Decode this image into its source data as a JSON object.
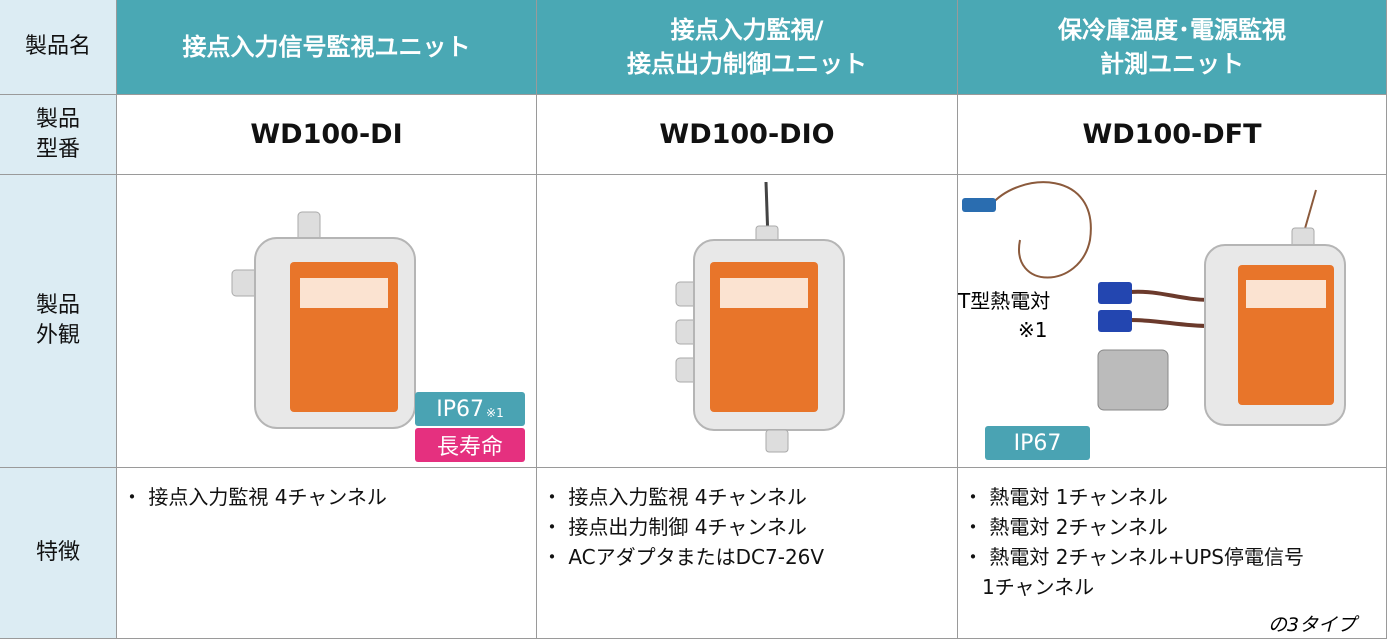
{
  "row_labels": {
    "name": [
      "製品名"
    ],
    "model": [
      "製品",
      "型番"
    ],
    "appearance": [
      "製品",
      "外観"
    ],
    "features": [
      "特徴"
    ]
  },
  "columns": [
    {
      "name": [
        "接点入力信号監視ユニット"
      ],
      "model": "WD100-DI",
      "badges": [
        {
          "text": "IP67",
          "note": "※1"
        },
        {
          "text": "長寿命"
        }
      ],
      "features": [
        "・ 接点入力監視 4チャンネル"
      ]
    },
    {
      "name": [
        "接点入力監視/",
        "接点出力制御ユニット"
      ],
      "model": "WD100-DIO",
      "features": [
        "・ 接点入力監視 4チャンネル",
        "・ 接点出力制御 4チャンネル",
        "・ ACアダプタまたはDC7-26V"
      ]
    },
    {
      "name": [
        "保冷庫温度･電源監視",
        "計測ユニット"
      ],
      "model": "WD100-DFT",
      "sensor_label": "T型熱電対",
      "sensor_note": "※1",
      "badges": [
        {
          "text": "IP67"
        }
      ],
      "features": [
        "・ 熱電対 1チャンネル",
        "・ 熱電対 2チャンネル",
        "・ 熱電対 2チャンネル+UPS停電信号",
        "1チャンネル"
      ],
      "footnote": "の3タイプ"
    }
  ]
}
